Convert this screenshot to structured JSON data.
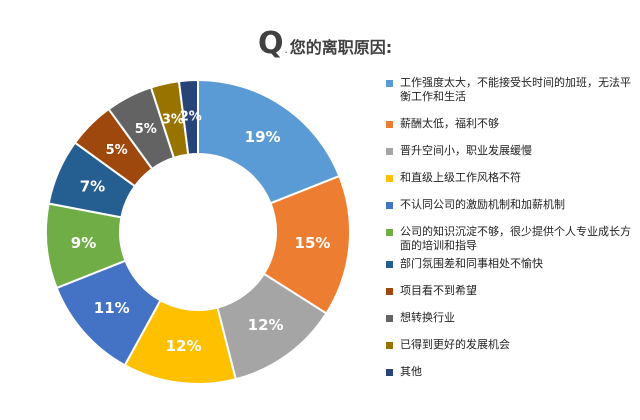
{
  "title": {
    "q": "Q",
    "dot": ".",
    "text": "您的离职原因:"
  },
  "chart_data": {
    "type": "pie",
    "donut": true,
    "legend_position": "right",
    "categories": [
      "工作强度太大，不能接受长时间的加班，无法平衡工作和生活",
      "薪酬太低，福利不够",
      "晋升空间小，职业发展缓慢",
      "和直级上级工作风格不符",
      "不认同公司的激励机制和加薪机制",
      "公司的知识沉淀不够，很少提供个人专业成长方面的培训和指导",
      "部门氛围差和同事相处不愉快",
      "项目看不到希望",
      "想转换行业",
      "已得到更好的发展机会",
      "其他"
    ],
    "values": [
      19,
      15,
      12,
      12,
      11,
      9,
      7,
      5,
      5,
      3,
      2
    ],
    "labels": [
      "19%",
      "15%",
      "12%",
      "12%",
      "11%",
      "9%",
      "7%",
      "5%",
      "5%",
      "3%",
      "2%"
    ],
    "colors": [
      "#5B9BD5",
      "#ED7D31",
      "#A5A5A5",
      "#FFC000",
      "#4472C4",
      "#70AD47",
      "#255E91",
      "#9E480E",
      "#636363",
      "#997300",
      "#264478"
    ]
  }
}
